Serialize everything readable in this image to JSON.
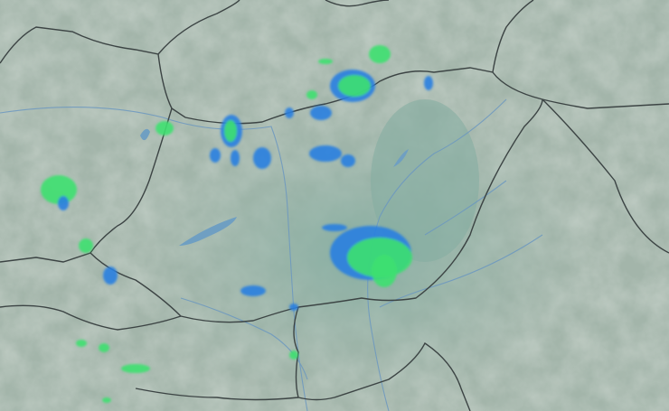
{
  "map": {
    "type": "weather-radar",
    "colors": {
      "terrain_high": "#c9cfc8",
      "terrain_mid": "#a9b8ac",
      "plain": "#8fb0a4",
      "water": "#6f9fc2",
      "border": "#3c4444",
      "rain_light": "#2a7fe0",
      "rain_moderate": "#3ee070",
      "rain_heavy": "#28e09a"
    }
  }
}
